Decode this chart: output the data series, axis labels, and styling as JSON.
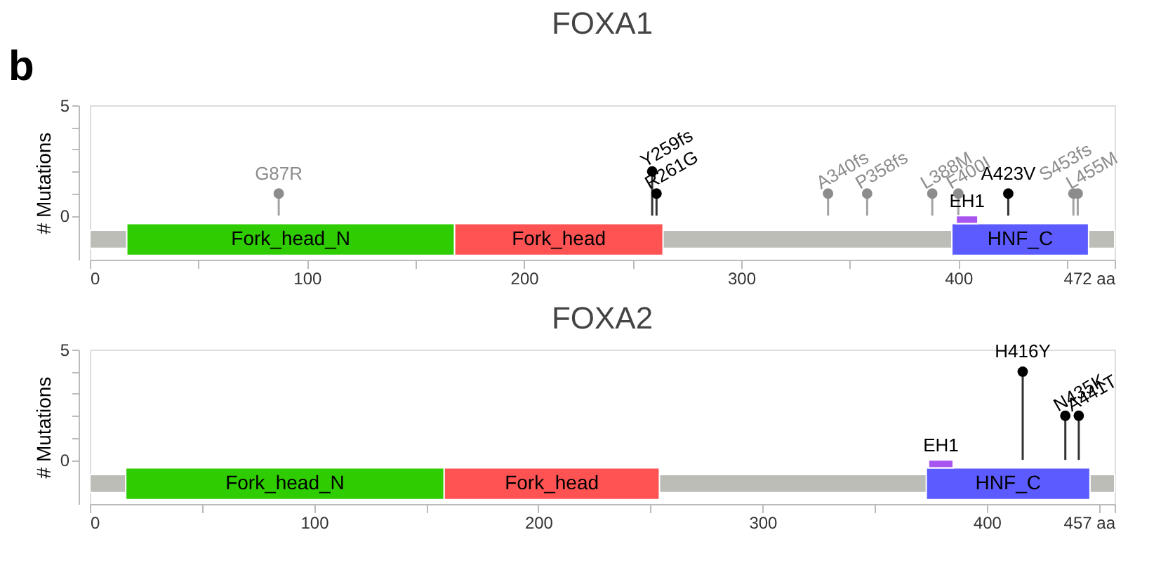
{
  "chart_data": [
    {
      "type": "lollipop",
      "title": "FOXA1",
      "ylabel": "# Mutations",
      "x": [
        87,
        259,
        261,
        340,
        358,
        388,
        400,
        423,
        453,
        455
      ],
      "values": [
        1,
        2,
        1,
        1,
        1,
        1,
        1,
        1,
        1,
        1
      ],
      "colors": [
        "#8c8c8c",
        "#000000",
        "#000000",
        "#8c8c8c",
        "#8c8c8c",
        "#8c8c8c",
        "#8c8c8c",
        "#000000",
        "#8c8c8c",
        "#8c8c8c"
      ],
      "annotations": [
        "b",
        {
          "text": "G87R",
          "x": 87,
          "y": 1
        },
        {
          "text": "Y259fs",
          "x": 259,
          "y": 2
        },
        {
          "text": "R261G",
          "x": 261,
          "y": 1
        },
        {
          "text": "A340fs",
          "x": 340,
          "y": 1
        },
        {
          "text": "P358fs",
          "x": 358,
          "y": 1
        },
        {
          "text": "L388M",
          "x": 388,
          "y": 1
        },
        {
          "text": "F400I",
          "x": 400,
          "y": 1
        },
        {
          "text": "A423V",
          "x": 423,
          "y": 1
        },
        {
          "text": "S453fs",
          "x": 453,
          "y": 1
        },
        {
          "text": "L455M",
          "x": 455,
          "y": 1
        }
      ],
      "bands": [
        {
          "axis": "x",
          "from": 0,
          "to": 472,
          "color": "#bdbdb8"
        },
        {
          "axis": "x",
          "from": 17,
          "to": 168,
          "label": "Fork_head_N",
          "color": "#2ecc00"
        },
        {
          "axis": "x",
          "from": 168,
          "to": 264,
          "label": "Fork_head",
          "color": "#ff5353"
        },
        {
          "axis": "x",
          "from": 397,
          "to": 460,
          "label": "HNF_C",
          "color": "#5b5bff"
        },
        {
          "axis": "x",
          "from": 399,
          "to": 409,
          "label": "EH1",
          "color": "#a855f0"
        }
      ],
      "xlim": [
        0,
        472
      ],
      "xticks": [
        0,
        {
          "value": 50,
          "label": null
        },
        100,
        {
          "value": 150,
          "label": null
        },
        200,
        {
          "value": 250,
          "label": null
        },
        300,
        {
          "value": 350,
          "label": null
        },
        400,
        {
          "value": 450,
          "label": null
        },
        {
          "value": 472,
          "label": "472 aa"
        }
      ],
      "ylim": [
        -2,
        5
      ],
      "yticks": [
        0,
        {
          "value": 1,
          "label": null
        },
        {
          "value": 2,
          "label": null
        },
        {
          "value": 3,
          "label": null
        },
        {
          "value": 4,
          "label": null
        },
        5
      ]
    },
    {
      "type": "lollipop",
      "title": "FOXA2",
      "ylabel": "# Mutations",
      "x": [
        416,
        435,
        441
      ],
      "values": [
        4,
        2,
        2
      ],
      "colors": [
        "#000000",
        "#000000",
        "#000000"
      ],
      "annotations": [
        {
          "text": "H416Y",
          "x": 416,
          "y": 4
        },
        {
          "text": "N435K",
          "x": 435,
          "y": 2
        },
        {
          "text": "A441T",
          "x": 441,
          "y": 2
        }
      ],
      "bands": [
        {
          "axis": "x",
          "from": 0,
          "to": 457,
          "color": "#bdbdb8"
        },
        {
          "axis": "x",
          "from": 16,
          "to": 158,
          "label": "Fork_head_N",
          "color": "#2ecc00"
        },
        {
          "axis": "x",
          "from": 158,
          "to": 254,
          "label": "Fork_head",
          "color": "#ff5353"
        },
        {
          "axis": "x",
          "from": 373,
          "to": 446,
          "label": "HNF_C",
          "color": "#5b5bff"
        },
        {
          "axis": "x",
          "from": 374,
          "to": 385,
          "label": "EH1",
          "color": "#a855f0"
        }
      ],
      "xlim": [
        0,
        457
      ],
      "xticks": [
        0,
        {
          "value": 50,
          "label": null
        },
        100,
        {
          "value": 150,
          "label": null
        },
        200,
        {
          "value": 250,
          "label": null
        },
        300,
        {
          "value": 350,
          "label": null
        },
        400,
        {
          "value": 450,
          "label": null
        },
        {
          "value": 457,
          "label": "457 aa"
        }
      ],
      "ylim": [
        -2,
        5
      ],
      "yticks": [
        0,
        {
          "value": 1,
          "label": null
        },
        {
          "value": 2,
          "label": null
        },
        {
          "value": 3,
          "label": null
        },
        {
          "value": 4,
          "label": null
        },
        5
      ]
    }
  ]
}
